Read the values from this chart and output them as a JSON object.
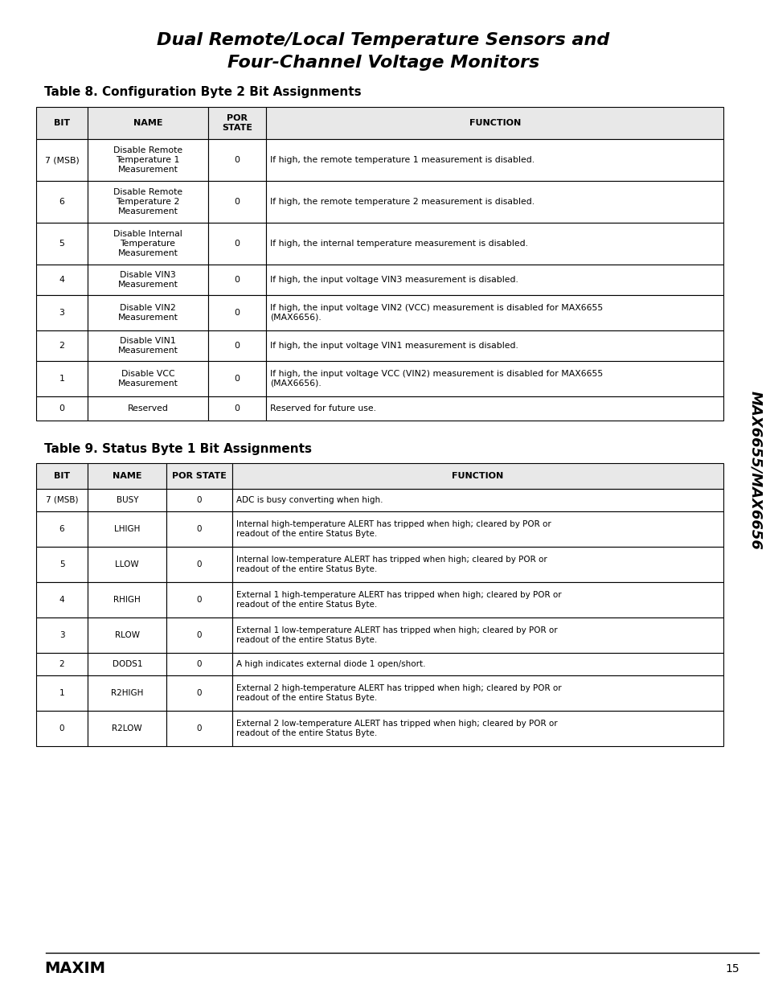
{
  "title_line1": "Dual Remote/Local Temperature Sensors and",
  "title_line2": "Four-Channel Voltage Monitors",
  "table8_title": "Table 8. Configuration Byte 2 Bit Assignments",
  "table9_title": "Table 9. Status Byte 1 Bit Assignments",
  "table8_headers": [
    "BIT",
    "NAME",
    "POR\nSTATE",
    "FUNCTION"
  ],
  "table9_headers": [
    "BIT",
    "NAME",
    "POR STATE",
    "FUNCTION"
  ],
  "table8_rows": [
    [
      "7 (MSB)",
      "Disable Remote\nTemperature 1\nMeasurement",
      "0",
      "If high, the remote temperature 1 measurement is disabled."
    ],
    [
      "6",
      "Disable Remote\nTemperature 2\nMeasurement",
      "0",
      "If high, the remote temperature 2 measurement is disabled."
    ],
    [
      "5",
      "Disable Internal\nTemperature\nMeasurement",
      "0",
      "If high, the internal temperature measurement is disabled."
    ],
    [
      "4",
      "Disable VIN3\nMeasurement",
      "0",
      "If high, the input voltage VIN3 measurement is disabled."
    ],
    [
      "3",
      "Disable VIN2\nMeasurement",
      "0",
      "If high, the input voltage VIN2 (VCC) measurement is disabled for MAX6655\n(MAX6656)."
    ],
    [
      "2",
      "Disable VIN1\nMeasurement",
      "0",
      "If high, the input voltage VIN1 measurement is disabled."
    ],
    [
      "1",
      "Disable VCC\nMeasurement",
      "0",
      "If high, the input voltage VCC (VIN2) measurement is disabled for MAX6655\n(MAX6656)."
    ],
    [
      "0",
      "Reserved",
      "0",
      "Reserved for future use."
    ]
  ],
  "table9_rows": [
    [
      "7 (MSB)",
      "BUSY",
      "0",
      "ADC is busy converting when high."
    ],
    [
      "6",
      "LHIGH",
      "0",
      "Internal high-temperature ALERT has tripped when high; cleared by POR or\nreadout of the entire Status Byte."
    ],
    [
      "5",
      "LLOW",
      "0",
      "Internal low-temperature ALERT has tripped when high; cleared by POR or\nreadout of the entire Status Byte."
    ],
    [
      "4",
      "RHIGH",
      "0",
      "External 1 high-temperature ALERT has tripped when high; cleared by POR or\nreadout of the entire Status Byte."
    ],
    [
      "3",
      "RLOW",
      "0",
      "External 1 low-temperature ALERT has tripped when high; cleared by POR or\nreadout of the entire Status Byte."
    ],
    [
      "2",
      "DODS1",
      "0",
      "A high indicates external diode 1 open/short."
    ],
    [
      "1",
      "R2HIGH",
      "0",
      "External 2 high-temperature ALERT has tripped when high; cleared by POR or\nreadout of the entire Status Byte."
    ],
    [
      "0",
      "R2LOW",
      "0",
      "External 2 low-temperature ALERT has tripped when high; cleared by POR or\nreadout of the entire Status Byte."
    ]
  ],
  "sidebar_text": "MAX6655/MAX6656",
  "footer_text": "15",
  "bg_color": "#ffffff",
  "header_bg": "#d0d0d0",
  "table_border_color": "#000000",
  "title_color": "#000000",
  "text_color": "#000000"
}
